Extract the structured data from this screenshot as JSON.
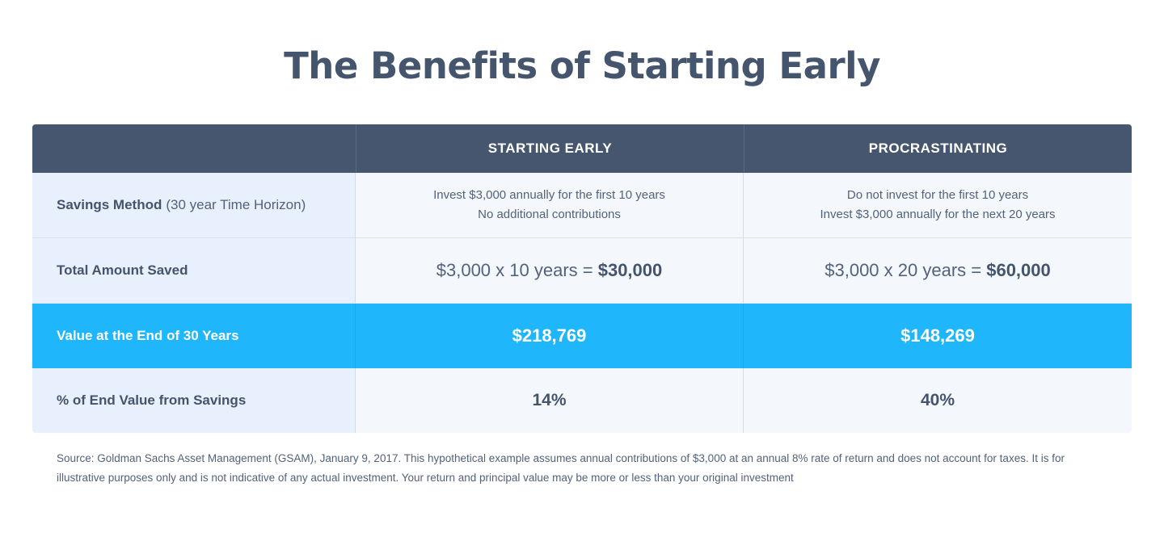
{
  "title": "The Benefits of Starting Early",
  "table": {
    "headers": [
      "",
      "STARTING EARLY",
      "PROCRASTINATING"
    ],
    "savings_method": {
      "label": "Savings Method",
      "label_note": "(30 year Time Horizon)",
      "starting_early": [
        "Invest $3,000 annually for the first 10 years",
        "No additional contributions"
      ],
      "procrastinating": [
        "Do not invest for the first 10 years",
        "Invest $3,000 annually for the next 20 years"
      ]
    },
    "total_saved": {
      "label": "Total Amount Saved",
      "starting_early": {
        "formula": "$3,000 x 10 years = ",
        "result": "$30,000"
      },
      "procrastinating": {
        "formula": "$3,000 x 20 years = ",
        "result": "$60,000"
      }
    },
    "end_value": {
      "label": "Value at the End of 30 Years",
      "starting_early": "$218,769",
      "procrastinating": "$148,269"
    },
    "pct_from_savings": {
      "label": "% of End Value from Savings",
      "starting_early": "14%",
      "procrastinating": "40%"
    }
  },
  "footnote": "Source: Goldman Sachs Asset Management (GSAM), January 9, 2017. This hypothetical example assumes annual contributions of $3,000 at an annual 8% rate of return and does not account for taxes. It is for illustrative purposes only and is not indicative of any actual investment. Your return and principal value may be more or less than your original investment",
  "colors": {
    "header_bg": "#46566e",
    "highlight_bg": "#20b6fb",
    "label_col_bg": "#e7f0fc",
    "value_col_bg": "#f4f8fd",
    "text": "#44546b"
  }
}
